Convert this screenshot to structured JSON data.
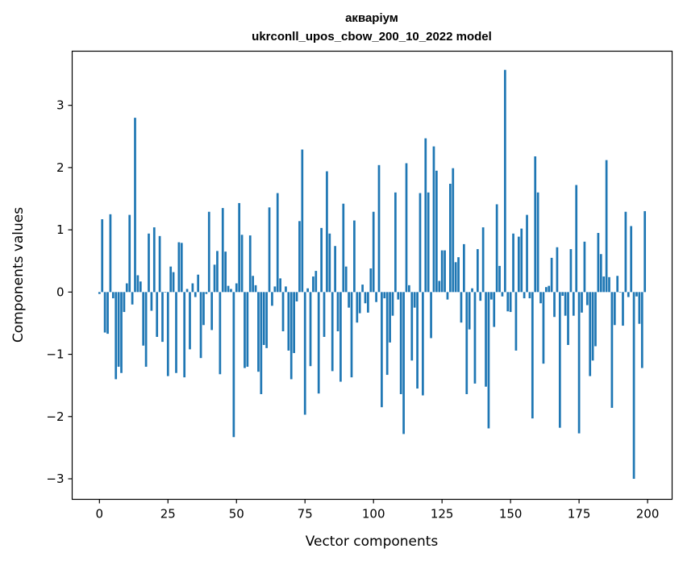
{
  "chart_data": {
    "type": "bar",
    "title": "акваріум",
    "subtitle": "ukrconll_upos_cbow_200_10_2022 model",
    "xlabel": "Vector components",
    "ylabel": "Components values",
    "xlim": [
      -9.95,
      208.95
    ],
    "ylim": [
      -3.33,
      3.87
    ],
    "xticks": [
      0,
      25,
      50,
      75,
      100,
      125,
      150,
      175,
      200
    ],
    "yticks": [
      -3,
      -2,
      -1,
      0,
      1,
      2,
      3
    ],
    "xtick_labels": [
      "0",
      "25",
      "50",
      "75",
      "100",
      "125",
      "150",
      "175",
      "200"
    ],
    "ytick_labels": [
      "−3",
      "−2",
      "−1",
      "0",
      "1",
      "2",
      "3"
    ],
    "bar_color": "#1f77b4",
    "grid": false,
    "values": [
      -0.03,
      1.17,
      -0.65,
      -0.67,
      1.25,
      -0.1,
      -1.4,
      -1.2,
      -1.3,
      -0.32,
      0.14,
      1.24,
      -0.2,
      2.8,
      0.27,
      0.17,
      -0.86,
      -1.2,
      0.94,
      -0.3,
      1.04,
      -0.72,
      0.9,
      -0.8,
      0.0,
      -1.35,
      0.41,
      0.32,
      -1.3,
      0.8,
      0.79,
      -1.37,
      0.05,
      -0.92,
      0.14,
      -0.08,
      0.28,
      -1.06,
      -0.53,
      -0.03,
      1.29,
      -0.61,
      0.44,
      0.66,
      -1.32,
      1.35,
      0.65,
      0.1,
      0.05,
      -2.33,
      0.14,
      1.43,
      0.92,
      -1.22,
      -1.2,
      0.91,
      0.26,
      0.11,
      -1.28,
      -1.64,
      -0.85,
      -0.9,
      1.36,
      -0.22,
      0.09,
      1.59,
      0.22,
      -0.63,
      0.09,
      -0.94,
      -1.4,
      -0.98,
      -0.15,
      1.14,
      2.29,
      -1.97,
      0.06,
      -1.19,
      0.25,
      0.34,
      -1.63,
      1.03,
      -0.72,
      1.94,
      0.94,
      -1.27,
      0.74,
      -0.63,
      -1.44,
      1.42,
      0.41,
      -0.25,
      -1.37,
      1.15,
      -0.49,
      -0.34,
      0.12,
      -0.18,
      -0.33,
      0.38,
      1.29,
      -0.16,
      2.04,
      -1.85,
      -0.1,
      -1.33,
      -0.81,
      -0.38,
      1.6,
      -0.12,
      -1.64,
      -2.28,
      2.07,
      0.11,
      -1.1,
      -0.25,
      -1.55,
      1.59,
      -1.66,
      2.47,
      1.6,
      -0.74,
      2.34,
      1.95,
      0.18,
      0.67,
      0.67,
      -0.12,
      1.74,
      1.99,
      0.48,
      0.56,
      -0.49,
      0.77,
      -1.64,
      -0.6,
      0.06,
      -1.47,
      0.69,
      -0.14,
      1.04,
      -1.52,
      -2.19,
      -0.12,
      -0.56,
      1.41,
      0.42,
      -0.07,
      3.57,
      -0.31,
      -0.32,
      0.94,
      -0.94,
      0.89,
      1.02,
      -0.1,
      1.24,
      -0.1,
      -2.03,
      2.18,
      1.6,
      -0.18,
      -1.15,
      0.08,
      0.1,
      0.55,
      -0.4,
      0.72,
      -2.18,
      -0.06,
      -0.38,
      -0.85,
      0.69,
      -0.38,
      1.72,
      -2.27,
      -0.33,
      0.81,
      -0.21,
      -1.35,
      -1.1,
      -0.87,
      0.95,
      0.61,
      0.25,
      2.12,
      0.24,
      -1.86,
      -0.53,
      0.26,
      0.0,
      -0.54,
      1.29,
      -0.08,
      1.06,
      -3.0,
      -0.07,
      -0.51,
      -1.22,
      1.3
    ]
  }
}
